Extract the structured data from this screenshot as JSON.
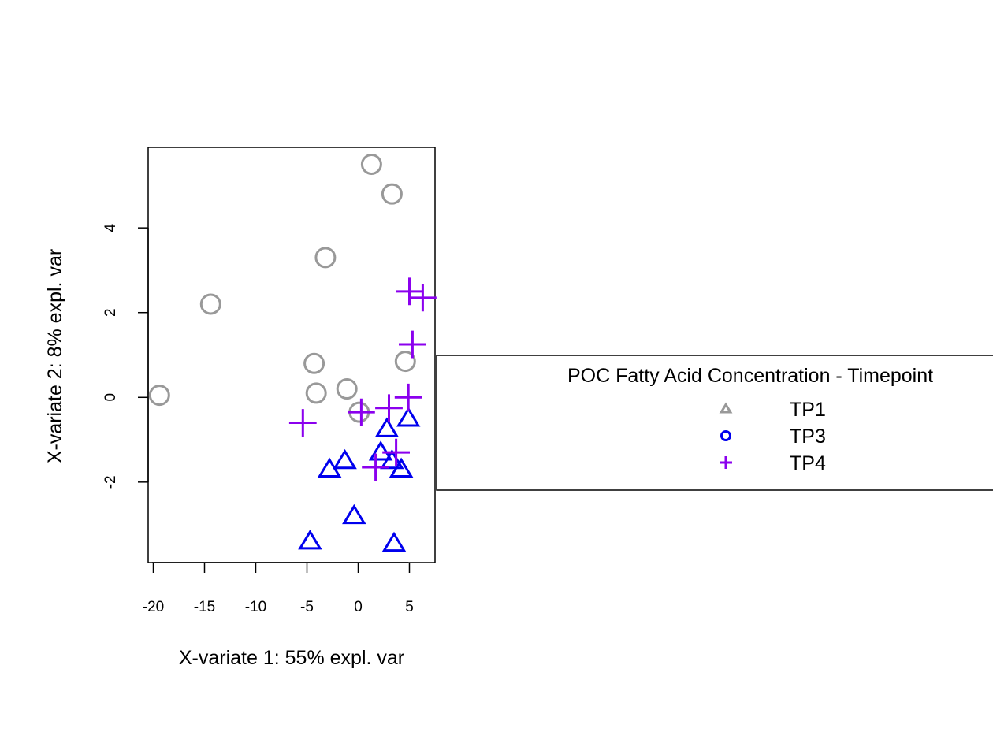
{
  "chart_data": {
    "type": "scatter",
    "xlabel": "X-variate 1: 55% expl. var",
    "ylabel": "X-variate 2: 8% expl. var",
    "xlim": [
      -20.5,
      7.5
    ],
    "ylim": [
      -3.9,
      5.9
    ],
    "xticks": [
      -20,
      -15,
      -10,
      -5,
      0,
      5
    ],
    "xtick_labels": [
      "-20",
      "-15",
      "-10",
      "-5",
      "0",
      "5"
    ],
    "yticks": [
      -2,
      0,
      2,
      4
    ],
    "ytick_labels": [
      "-2",
      "0",
      "2",
      "4"
    ],
    "grid": false,
    "legend": {
      "title": "POC Fatty Acid Concentration - Timepoint",
      "position": "right",
      "entries": [
        {
          "label": "TP1",
          "shape": "triangle",
          "color": "#999999"
        },
        {
          "label": "TP3",
          "shape": "circle",
          "color": "#0000ee"
        },
        {
          "label": "TP4",
          "shape": "plus",
          "color": "#8b00ee"
        }
      ]
    },
    "series": [
      {
        "shape": "circle",
        "color": "#999999",
        "points": [
          {
            "x": 1.3,
            "y": 5.5
          },
          {
            "x": 3.3,
            "y": 4.8
          },
          {
            "x": -3.2,
            "y": 3.3
          },
          {
            "x": -14.4,
            "y": 2.2
          },
          {
            "x": -4.3,
            "y": 0.8
          },
          {
            "x": 4.6,
            "y": 0.85
          },
          {
            "x": -19.4,
            "y": 0.05
          },
          {
            "x": -4.1,
            "y": 0.1
          },
          {
            "x": -1.1,
            "y": 0.2
          },
          {
            "x": 0.1,
            "y": -0.35
          }
        ]
      },
      {
        "shape": "triangle",
        "color": "#0000ee",
        "points": [
          {
            "x": 4.9,
            "y": -0.5
          },
          {
            "x": 2.8,
            "y": -0.75
          },
          {
            "x": 2.2,
            "y": -1.3
          },
          {
            "x": 3.3,
            "y": -1.5
          },
          {
            "x": -1.3,
            "y": -1.5
          },
          {
            "x": -2.8,
            "y": -1.7
          },
          {
            "x": 4.2,
            "y": -1.7
          },
          {
            "x": -0.4,
            "y": -2.8
          },
          {
            "x": -4.7,
            "y": -3.4
          },
          {
            "x": 3.5,
            "y": -3.45
          }
        ]
      },
      {
        "shape": "plus",
        "color": "#8b00ee",
        "points": [
          {
            "x": 5.0,
            "y": 2.5
          },
          {
            "x": 6.3,
            "y": 2.35
          },
          {
            "x": 5.3,
            "y": 1.25
          },
          {
            "x": 4.9,
            "y": 0.0
          },
          {
            "x": 0.3,
            "y": -0.35
          },
          {
            "x": 3.0,
            "y": -0.25
          },
          {
            "x": -5.4,
            "y": -0.6
          },
          {
            "x": 3.7,
            "y": -1.3
          },
          {
            "x": 1.7,
            "y": -1.65
          }
        ]
      }
    ]
  }
}
